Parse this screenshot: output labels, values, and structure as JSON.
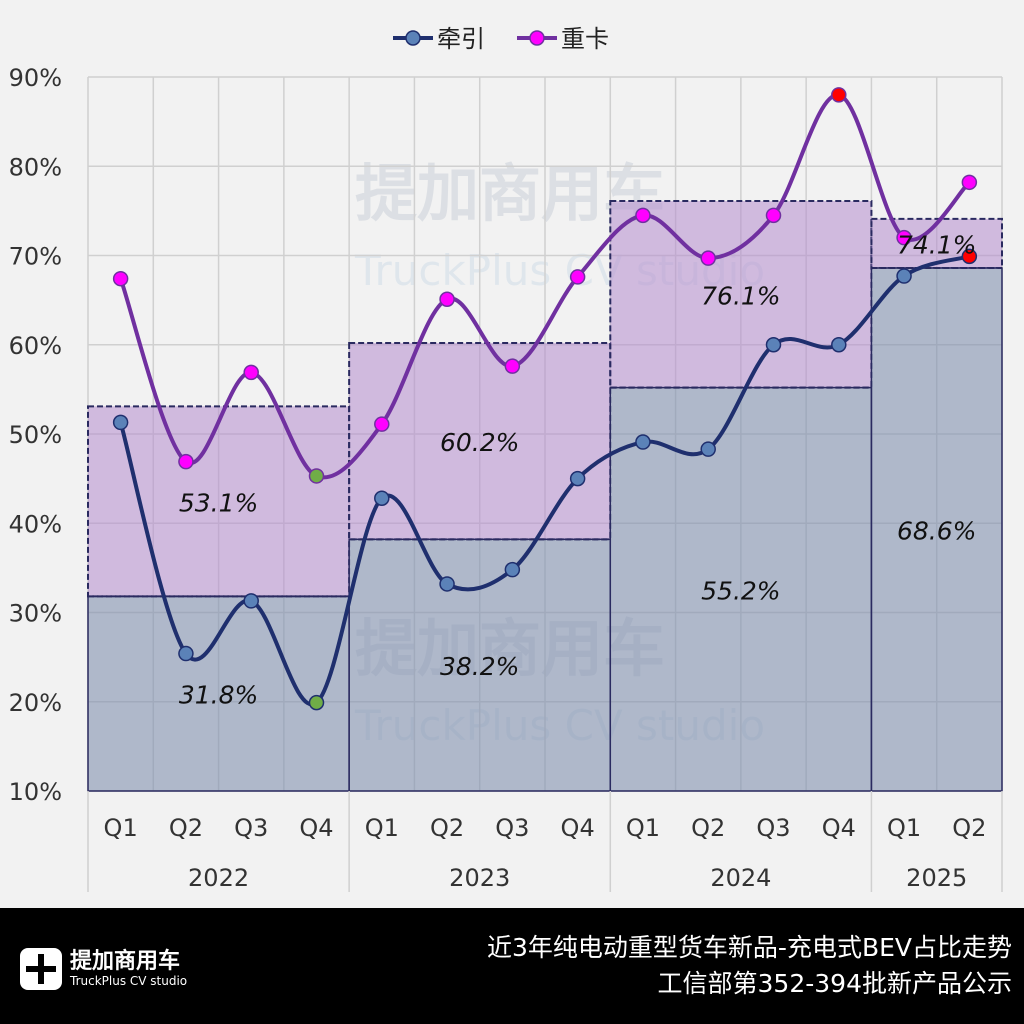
{
  "chart_data": {
    "type": "line",
    "title": "",
    "xlabel": "",
    "ylabel": "",
    "ylim": [
      0.1,
      0.9
    ],
    "yticks": [
      "10%",
      "20%",
      "30%",
      "40%",
      "50%",
      "60%",
      "70%",
      "80%",
      "90%"
    ],
    "grid": true,
    "legend_position": "top",
    "quarters": [
      "Q1",
      "Q2",
      "Q3",
      "Q4",
      "Q1",
      "Q2",
      "Q3",
      "Q4",
      "Q1",
      "Q2",
      "Q3",
      "Q4",
      "Q1",
      "Q2"
    ],
    "years": [
      {
        "label": "2022",
        "count": 4
      },
      {
        "label": "2023",
        "count": 4
      },
      {
        "label": "2024",
        "count": 4
      },
      {
        "label": "2025",
        "count": 2
      }
    ],
    "series": [
      {
        "name": "牵引",
        "color": "#1f2f6e",
        "marker": "#5b82b8",
        "values": [
          0.513,
          0.254,
          0.313,
          0.199,
          0.428,
          0.332,
          0.348,
          0.45,
          0.491,
          0.483,
          0.6,
          0.6,
          0.677,
          0.699
        ],
        "marker_overrides": {
          "3": "#70ad47",
          "13": "#ff0000"
        }
      },
      {
        "name": "重卡",
        "color": "#7030a0",
        "marker": "#ff00ff",
        "values": [
          0.674,
          0.469,
          0.569,
          0.453,
          0.511,
          0.651,
          0.576,
          0.676,
          0.745,
          0.697,
          0.745,
          0.88,
          0.72,
          0.782
        ],
        "marker_overrides": {
          "3": "#70ad47",
          "11": "#ff0000"
        }
      }
    ],
    "annual": {
      "牵引": {
        "values": [
          0.318,
          0.382,
          0.552,
          0.686
        ],
        "labels": [
          "31.8%",
          "38.2%",
          "55.2%",
          "68.6%"
        ]
      },
      "重卡": {
        "values": [
          0.531,
          0.602,
          0.761,
          0.741
        ],
        "labels": [
          "53.1%",
          "60.2%",
          "76.1%",
          "74.1%"
        ]
      }
    }
  },
  "watermark": {
    "cn": "提加商用车",
    "en": "TruckPlus CV studio"
  },
  "footer": {
    "logo_cn": "提加商用车",
    "logo_en": "TruckPlus CV studio",
    "title_line1": "近3年纯电动重型货车新品-充电式BEV占比走势",
    "title_line2": "工信部第352-394批新产品公示"
  }
}
